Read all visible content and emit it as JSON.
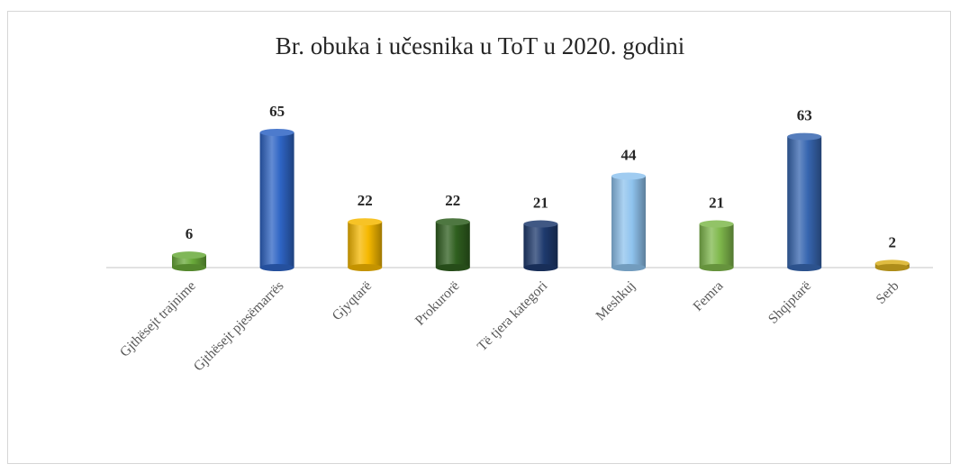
{
  "chart_data": {
    "type": "bar",
    "title": "Br. obuka i učesnika u ToT u 2020. godini",
    "categories": [
      "Gjthësejt trajnime",
      "Gjthësejt pjesëmarrës",
      "Gjyqtarë",
      "Prokurorë",
      "Të tjera kategori",
      "Meshkuj",
      "Femra",
      "Shqiptarë",
      "Serb"
    ],
    "values": [
      6,
      65,
      22,
      22,
      21,
      44,
      21,
      63,
      2
    ],
    "colors": [
      "#6aaa3a",
      "#2e64c4",
      "#f5b800",
      "#2f5f1f",
      "#1e3a6e",
      "#8fc3ee",
      "#7fb84c",
      "#3766b0",
      "#d9b020"
    ],
    "ylim": [
      0,
      70
    ],
    "xlabel": "",
    "ylabel": "",
    "grid": false,
    "legend": "none"
  }
}
